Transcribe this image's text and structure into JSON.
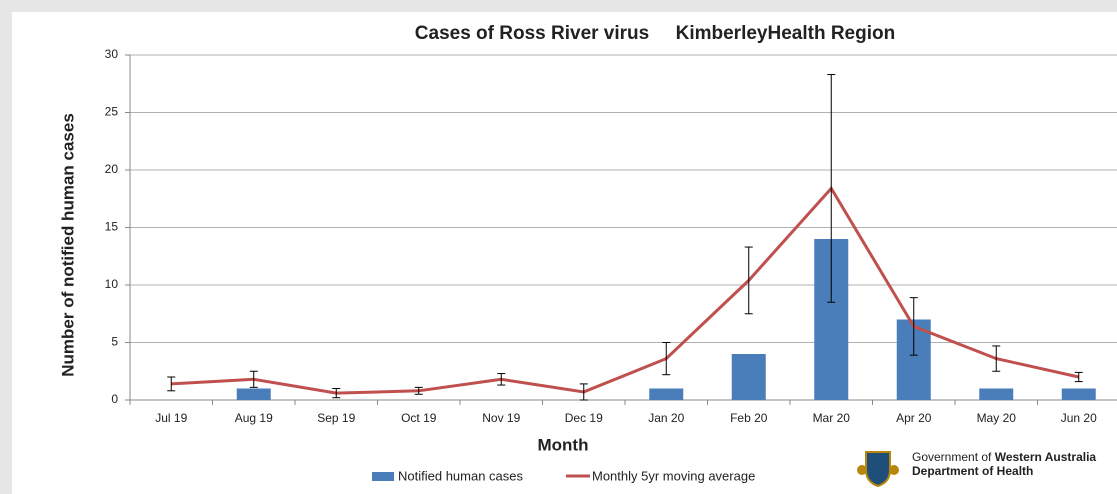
{
  "chart_data": {
    "type": "bar-line",
    "title": "Cases of Ross River virus     KimberleyHealth Region",
    "x_label": "Month",
    "y_label": "Number of notified human cases",
    "categories": [
      "Jul 19",
      "Aug 19",
      "Sep 19",
      "Oct 19",
      "Nov 19",
      "Dec 19",
      "Jan 20",
      "Feb 20",
      "Mar 20",
      "Apr 20",
      "May 20",
      "Jun 20"
    ],
    "series": [
      {
        "name": "Notified human cases",
        "kind": "bar",
        "color": "#4a7ebb",
        "values": [
          0,
          1,
          0,
          0,
          0,
          0,
          1,
          4,
          14,
          7,
          1,
          1
        ]
      },
      {
        "name": "Monthly 5yr moving average",
        "kind": "line",
        "color": "#c0504d",
        "values": [
          1.4,
          1.8,
          0.6,
          0.8,
          1.8,
          0.7,
          3.6,
          10.4,
          18.4,
          6.4,
          3.6,
          2.0
        ],
        "errors": [
          0.6,
          0.7,
          0.4,
          0.3,
          0.5,
          0.7,
          1.4,
          2.9,
          9.9,
          2.5,
          1.1,
          0.4
        ]
      }
    ],
    "ylim": [
      0,
      30
    ],
    "yticks": [
      0,
      5,
      10,
      15,
      20,
      25,
      30
    ],
    "grid": true,
    "legend": "bottom",
    "logo": {
      "line1_normal": "Government of ",
      "line1_bold": "Western Australia",
      "line2": "Department of Health"
    }
  }
}
